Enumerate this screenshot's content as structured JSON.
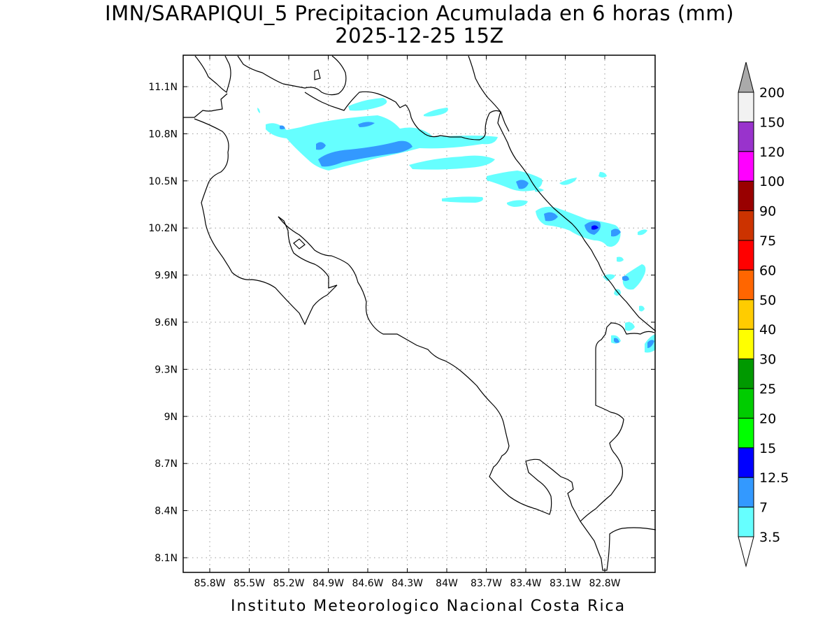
{
  "title": {
    "line1": "IMN/SARAPIQUI_5 Precipitacion Acumulada en 6 horas (mm)",
    "line2": "2025-12-25 15Z"
  },
  "footer": "Instituto Meteorologico Nacional Costa Rica",
  "axes": {
    "lon_ticks": [
      "85.8W",
      "85.5W",
      "85.2W",
      "84.9W",
      "84.6W",
      "84.3W",
      "84W",
      "83.7W",
      "83.4W",
      "83.1W",
      "82.8W"
    ],
    "lat_ticks": [
      "11.1N",
      "10.8N",
      "10.5N",
      "10.2N",
      "9.9N",
      "9.6N",
      "9.3N",
      "9N",
      "8.7N",
      "8.4N",
      "8.1N"
    ]
  },
  "legend": {
    "labels": [
      "200",
      "150",
      "120",
      "100",
      "90",
      "75",
      "60",
      "50",
      "40",
      "30",
      "25",
      "20",
      "15",
      "12.5",
      "7",
      "3.5"
    ],
    "colors": [
      "#f2f2f2",
      "#9933cc",
      "#ff00ff",
      "#990000",
      "#cc3300",
      "#ff0000",
      "#ff6600",
      "#ffcc00",
      "#ffff00",
      "#009900",
      "#00cc00",
      "#00ff00",
      "#0000ff",
      "#3399ff",
      "#66ffff"
    ],
    "top_arrow_color": "#aaaaaa",
    "bottom_arrow_color": "#ffffff"
  },
  "precip_colors": {
    "light": "#66ffff",
    "medium": "#3399ff",
    "heavy": "#0000ff"
  }
}
